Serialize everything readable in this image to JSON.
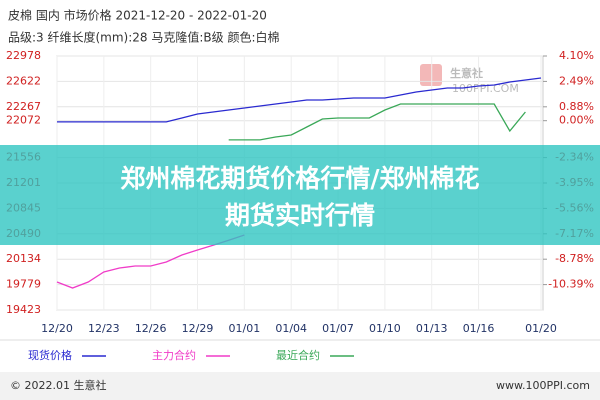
{
  "chart_data": {
    "type": "line",
    "title": "皮棉 国内 市场价格 2021-12-20 - 2022-01-20",
    "subtitle": "品级:3 纤维长度(mm):28 马克隆值:B级 颜色:白棉",
    "categories": [
      "12/20",
      null,
      null,
      "12/23",
      null,
      null,
      "12/26",
      null,
      null,
      "12/29",
      null,
      null,
      "01/01",
      null,
      null,
      "01/04",
      null,
      null,
      "01/07",
      null,
      null,
      "01/10",
      null,
      null,
      "01/13",
      null,
      null,
      "01/16",
      null,
      null,
      null,
      "01/20"
    ],
    "series": [
      {
        "name": "现货价格",
        "color": "#2a2ad0",
        "values": [
          22055,
          22055,
          22055,
          22055,
          22055,
          22055,
          22055,
          22055,
          22110,
          22166,
          22194,
          22222,
          22250,
          22278,
          22306,
          22334,
          22362,
          22362,
          22376,
          22390,
          22390,
          22390,
          22432,
          22474,
          22502,
          22530,
          22530,
          22558,
          22572,
          22614,
          22642,
          22670
        ]
      },
      {
        "name": "主力合约",
        "color": "#f03cc8",
        "values": [
          19815,
          19731,
          19815,
          19955,
          20011,
          20039,
          20039,
          20095,
          20193,
          20263,
          20330,
          20400,
          20473,
          null,
          null,
          null,
          null,
          null,
          null,
          null,
          null,
          null,
          null,
          null,
          null,
          null,
          null,
          null,
          null,
          null,
          null,
          null
        ]
      },
      {
        "name": "最近合约",
        "color": "#3aa858",
        "values": [
          null,
          null,
          null,
          null,
          null,
          null,
          null,
          null,
          null,
          null,
          null,
          21804,
          21804,
          21804,
          21845,
          21872,
          21984,
          22096,
          22110,
          22110,
          22110,
          22222,
          22306,
          22306,
          22306,
          22306,
          22306,
          22306,
          22306,
          21928,
          22194,
          null
        ]
      }
    ],
    "ylim": [
      19423,
      22978
    ],
    "yticks": [
      22978,
      22622,
      22267,
      22072,
      21556,
      21201,
      20845,
      20490,
      20134,
      19779,
      19423
    ],
    "y2lim": [
      -12,
      4.1
    ],
    "y2ticks": [
      {
        "value": 4.1,
        "label": "4.10%"
      },
      {
        "value": 2.49,
        "label": "2.49%"
      },
      {
        "value": 0.88,
        "label": "0.88%"
      },
      {
        "value": 0,
        "label": "0.00%"
      },
      {
        "value": -2.34,
        "label": "-2.34%"
      },
      {
        "value": -3.95,
        "label": "-3.95%"
      },
      {
        "value": -5.56,
        "label": "-5.56%"
      },
      {
        "value": -7.17,
        "label": "-7.17%"
      },
      {
        "value": -8.78,
        "label": "-8.78%"
      },
      {
        "value": -10.39,
        "label": "-10.39%"
      }
    ],
    "grid": true
  },
  "banner": {
    "line1": "郑州棉花期货价格行情/郑州棉花",
    "line2": "期货实时行情"
  },
  "watermark": {
    "name": "生意社",
    "site": "100PPI.COM"
  },
  "footer": {
    "copyright": "© 2022.01 生意社",
    "site": "www.100PPI.com"
  }
}
